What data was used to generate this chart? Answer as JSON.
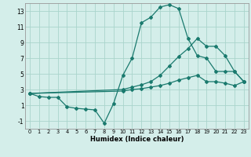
{
  "xlabel": "Humidex (Indice chaleur)",
  "bg_color": "#d4eeea",
  "grid_color": "#aad4cc",
  "line_color": "#1a7a6e",
  "xlim": [
    -0.5,
    23.5
  ],
  "ylim": [
    -2,
    14
  ],
  "xticks": [
    0,
    1,
    2,
    3,
    4,
    5,
    6,
    7,
    8,
    9,
    10,
    11,
    12,
    13,
    14,
    15,
    16,
    17,
    18,
    19,
    20,
    21,
    22,
    23
  ],
  "yticks": [
    -1,
    1,
    3,
    5,
    7,
    9,
    11,
    13
  ],
  "line1_x": [
    0,
    1,
    2,
    3,
    4,
    5,
    6,
    7,
    8,
    9,
    10,
    11,
    12,
    13,
    14,
    15,
    16,
    17,
    18,
    19,
    20,
    21,
    22,
    23
  ],
  "line1_y": [
    2.5,
    2.1,
    2.0,
    2.0,
    0.8,
    0.6,
    0.5,
    0.4,
    -1.3,
    1.2,
    4.8,
    7.0,
    11.5,
    12.2,
    13.5,
    13.8,
    13.3,
    9.5,
    7.3,
    7.0,
    5.3,
    5.3,
    5.3,
    4.0
  ],
  "line2_x": [
    0,
    10,
    11,
    12,
    13,
    14,
    15,
    16,
    17,
    18,
    19,
    20,
    21,
    22,
    23
  ],
  "line2_y": [
    2.5,
    3.0,
    3.3,
    3.6,
    4.0,
    4.8,
    6.0,
    7.2,
    8.2,
    9.5,
    8.5,
    8.5,
    7.3,
    5.3,
    4.0
  ],
  "line3_x": [
    0,
    10,
    11,
    12,
    13,
    14,
    15,
    16,
    17,
    18,
    19,
    20,
    21,
    22,
    23
  ],
  "line3_y": [
    2.5,
    2.8,
    3.0,
    3.1,
    3.3,
    3.5,
    3.8,
    4.2,
    4.5,
    4.8,
    4.0,
    4.0,
    3.8,
    3.5,
    4.0
  ]
}
